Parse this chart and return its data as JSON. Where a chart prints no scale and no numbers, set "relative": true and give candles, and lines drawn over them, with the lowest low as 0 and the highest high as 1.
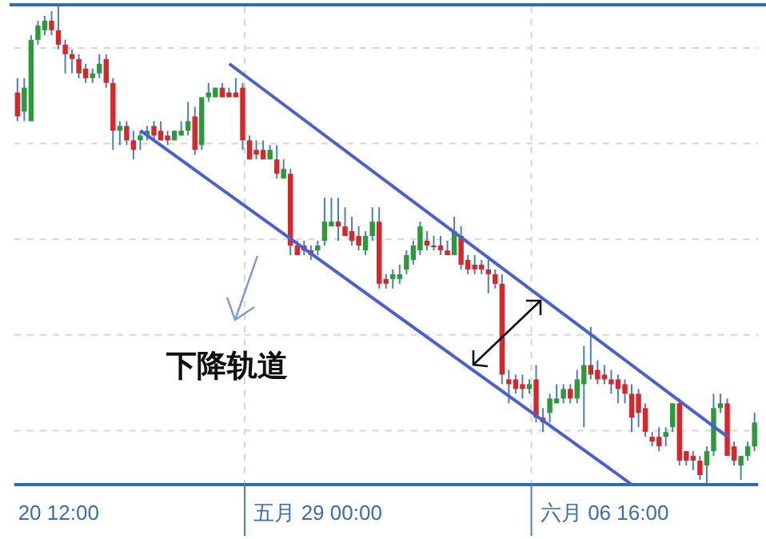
{
  "chart_data": {
    "type": "candlestick",
    "relative": true,
    "grid": true,
    "categories": [
      null,
      null,
      null,
      null,
      null,
      null,
      "20 12:00",
      null,
      null,
      null,
      null,
      null,
      null,
      null,
      null,
      null,
      null,
      null,
      null,
      null,
      null,
      null,
      null,
      null,
      null,
      null,
      null,
      null,
      null,
      null,
      null,
      null,
      null,
      null,
      null,
      null,
      null,
      null,
      null,
      null,
      null,
      null,
      null,
      null,
      "五月 29 00:00",
      null,
      null,
      null,
      null,
      null,
      null,
      null,
      null,
      null,
      null,
      null,
      null,
      null,
      null,
      null,
      null,
      null,
      null,
      null,
      null,
      null,
      null,
      null,
      null,
      null,
      null,
      null,
      null,
      null,
      null,
      null,
      null,
      null,
      null,
      null,
      null,
      null,
      null,
      null,
      null,
      null,
      "六月 06 16:00",
      null,
      null,
      null,
      null,
      null,
      null,
      null,
      null,
      null,
      null,
      null,
      null,
      null,
      null,
      null,
      null,
      null,
      null,
      null,
      null,
      null,
      null
    ],
    "ohlc": [
      [
        0.82,
        0.85,
        0.76,
        0.77
      ],
      [
        0.78,
        0.85,
        0.76,
        0.83
      ],
      [
        0.76,
        0.94,
        0.76,
        0.93
      ],
      [
        0.93,
        0.97,
        0.92,
        0.96
      ],
      [
        0.95,
        0.98,
        0.94,
        0.97
      ],
      [
        0.97,
        0.99,
        0.94,
        0.95
      ],
      [
        0.95,
        1,
        0.91,
        0.92
      ],
      [
        0.92,
        0.93,
        0.86,
        0.9
      ],
      [
        0.9,
        0.91,
        0.86,
        0.89
      ],
      [
        0.89,
        0.9,
        0.85,
        0.86
      ],
      [
        0.87,
        0.88,
        0.84,
        0.85
      ],
      [
        0.85,
        0.87,
        0.84,
        0.86
      ],
      [
        0.86,
        0.9,
        0.85,
        0.88
      ],
      [
        0.89,
        0.9,
        0.83,
        0.84
      ],
      [
        0.84,
        0.85,
        0.7,
        0.74
      ],
      [
        0.74,
        0.76,
        0.71,
        0.75
      ],
      [
        0.75,
        0.76,
        0.71,
        0.72
      ],
      [
        0.72,
        0.74,
        0.68,
        0.7
      ],
      [
        0.72,
        0.74,
        0.7,
        0.73
      ],
      [
        0.73,
        0.75,
        0.72,
        0.74
      ],
      [
        0.75,
        0.76,
        0.72,
        0.73
      ],
      [
        0.74,
        0.76,
        0.72,
        0.72
      ],
      [
        0.73,
        0.74,
        0.71,
        0.72
      ],
      [
        0.72,
        0.74,
        0.72,
        0.74
      ],
      [
        0.73,
        0.76,
        0.73,
        0.74
      ],
      [
        0.74,
        0.8,
        0.73,
        0.76
      ],
      [
        0.77,
        0.79,
        0.69,
        0.7
      ],
      [
        0.71,
        0.81,
        0.7,
        0.81
      ],
      [
        0.81,
        0.84,
        0.8,
        0.82
      ],
      [
        0.81,
        0.83,
        0.81,
        0.83
      ],
      [
        0.83,
        0.84,
        0.81,
        0.81
      ],
      [
        0.82,
        0.83,
        0.81,
        0.81
      ],
      [
        0.82,
        0.85,
        0.81,
        0.81
      ],
      [
        0.83,
        0.84,
        0.7,
        0.72
      ],
      [
        0.72,
        0.73,
        0.68,
        0.68
      ],
      [
        0.7,
        0.72,
        0.68,
        0.69
      ],
      [
        0.7,
        0.72,
        0.68,
        0.68
      ],
      [
        0.68,
        0.71,
        0.68,
        0.7
      ],
      [
        0.68,
        0.71,
        0.64,
        0.65
      ],
      [
        0.64,
        0.68,
        0.64,
        0.66
      ],
      [
        0.65,
        0.66,
        0.48,
        0.5
      ],
      [
        0.5,
        0.51,
        0.48,
        0.48
      ],
      [
        0.5,
        0.51,
        0.48,
        0.49
      ],
      [
        0.49,
        0.5,
        0.47,
        0.48
      ],
      [
        0.49,
        0.51,
        0.48,
        0.5
      ],
      [
        0.51,
        0.6,
        0.5,
        0.55
      ],
      [
        0.54,
        0.6,
        0.54,
        0.55
      ],
      [
        0.55,
        0.6,
        0.51,
        0.54
      ],
      [
        0.54,
        0.58,
        0.52,
        0.52
      ],
      [
        0.53,
        0.56,
        0.5,
        0.51
      ],
      [
        0.52,
        0.54,
        0.49,
        0.5
      ],
      [
        0.49,
        0.53,
        0.48,
        0.52
      ],
      [
        0.52,
        0.58,
        0.51,
        0.55
      ],
      [
        0.55,
        0.58,
        0.41,
        0.42
      ],
      [
        0.43,
        0.44,
        0.41,
        0.42
      ],
      [
        0.43,
        0.45,
        0.41,
        0.44
      ],
      [
        0.43,
        0.46,
        0.42,
        0.44
      ],
      [
        0.45,
        0.49,
        0.44,
        0.48
      ],
      [
        0.47,
        0.51,
        0.46,
        0.5
      ],
      [
        0.49,
        0.55,
        0.48,
        0.54
      ],
      [
        0.51,
        0.53,
        0.49,
        0.5
      ],
      [
        0.5,
        0.52,
        0.49,
        0.5
      ],
      [
        0.5,
        0.52,
        0.48,
        0.49
      ],
      [
        0.49,
        0.51,
        0.48,
        0.48
      ],
      [
        0.48,
        0.56,
        0.48,
        0.53
      ],
      [
        0.52,
        0.54,
        0.45,
        0.46
      ],
      [
        0.47,
        0.48,
        0.44,
        0.45
      ],
      [
        0.46,
        0.48,
        0.44,
        0.45
      ],
      [
        0.46,
        0.47,
        0.44,
        0.45
      ],
      [
        0.45,
        0.47,
        0.4,
        0.44
      ],
      [
        0.44,
        0.45,
        0.41,
        0.42
      ],
      [
        0.42,
        0.44,
        0.21,
        0.23
      ],
      [
        0.22,
        0.24,
        0.17,
        0.21
      ],
      [
        0.22,
        0.23,
        0.19,
        0.2
      ],
      [
        0.21,
        0.23,
        0.18,
        0.2
      ],
      [
        0.2,
        0.22,
        0.19,
        0.21
      ],
      [
        0.22,
        0.25,
        0.13,
        0.14
      ],
      [
        0.14,
        0.16,
        0.11,
        0.13
      ],
      [
        0.15,
        0.19,
        0.13,
        0.18
      ],
      [
        0.17,
        0.21,
        0.17,
        0.18
      ],
      [
        0.18,
        0.21,
        0.17,
        0.2
      ],
      [
        0.2,
        0.21,
        0.17,
        0.18
      ],
      [
        0.18,
        0.24,
        0.17,
        0.22
      ],
      [
        0.21,
        0.29,
        0.12,
        0.25
      ],
      [
        0.25,
        0.33,
        0.22,
        0.23
      ],
      [
        0.24,
        0.26,
        0.21,
        0.22
      ],
      [
        0.23,
        0.25,
        0.21,
        0.22
      ],
      [
        0.22,
        0.24,
        0.19,
        0.21
      ],
      [
        0.22,
        0.23,
        0.17,
        0.2
      ],
      [
        0.21,
        0.22,
        0.17,
        0.19
      ],
      [
        0.19,
        0.21,
        0.11,
        0.14
      ],
      [
        0.19,
        0.2,
        0.12,
        0.15
      ],
      [
        0.16,
        0.17,
        0.1,
        0.11
      ],
      [
        0.1,
        0.11,
        0.08,
        0.09
      ],
      [
        0.1,
        0.12,
        0.07,
        0.08
      ],
      [
        0.1,
        0.12,
        0.08,
        0.11
      ],
      [
        0.12,
        0.17,
        0.11,
        0.17
      ],
      [
        0.17,
        0.18,
        0.04,
        0.05
      ],
      [
        0.07,
        0.07,
        0.04,
        0.05
      ],
      [
        0.06,
        0.07,
        0.03,
        0.05
      ],
      [
        0.05,
        0.06,
        0.01,
        0.02
      ],
      [
        0.04,
        0.08,
        0,
        0.07
      ],
      [
        0.07,
        0.19,
        0.06,
        0.16
      ],
      [
        0.16,
        0.19,
        0.15,
        0.17
      ],
      [
        0.17,
        0.18,
        0.06,
        0.06
      ],
      [
        0.08,
        0.09,
        0.04,
        0.05
      ],
      [
        0.04,
        0.06,
        0.01,
        0.06
      ],
      [
        0.06,
        0.09,
        0.05,
        0.08
      ],
      [
        0.08,
        0.15,
        0.07,
        0.13
      ]
    ],
    "colors": [
      "#d9262b",
      "#2a9a3a",
      "#2a9a3a",
      "#2a9a3a",
      "#2a9a3a",
      "#d9262b",
      "#d9262b",
      "#d9262b",
      "#d9262b",
      "#d9262b",
      "#d9262b",
      "#2a9a3a",
      "#2a9a3a",
      "#d9262b",
      "#d9262b",
      "#2a9a3a",
      "#d9262b",
      "#d9262b",
      "#2a9a3a",
      "#2a9a3a",
      "#d9262b",
      "#d9262b",
      "#d9262b",
      "#2a9a3a",
      "#2a9a3a",
      "#2a9a3a",
      "#d9262b",
      "#2a9a3a",
      "#2a9a3a",
      "#2a9a3a",
      "#d9262b",
      "#d9262b",
      "#d9262b",
      "#d9262b",
      "#d9262b",
      "#d9262b",
      "#d9262b",
      "#2a9a3a",
      "#d9262b",
      "#2a9a3a",
      "#d9262b",
      "#d9262b",
      "#d9262b",
      "#d9262b",
      "#2a9a3a",
      "#2a9a3a",
      "#2a9a3a",
      "#d9262b",
      "#d9262b",
      "#d9262b",
      "#d9262b",
      "#2a9a3a",
      "#2a9a3a",
      "#d9262b",
      "#d9262b",
      "#2a9a3a",
      "#2a9a3a",
      "#2a9a3a",
      "#2a9a3a",
      "#2a9a3a",
      "#d9262b",
      "#d9262b",
      "#d9262b",
      "#d9262b",
      "#2a9a3a",
      "#d9262b",
      "#d9262b",
      "#d9262b",
      "#d9262b",
      "#d9262b",
      "#d9262b",
      "#d9262b",
      "#d9262b",
      "#d9262b",
      "#d9262b",
      "#2a9a3a",
      "#d9262b",
      "#d9262b",
      "#2a9a3a",
      "#2a9a3a",
      "#2a9a3a",
      "#d9262b",
      "#2a9a3a",
      "#2a9a3a",
      "#d9262b",
      "#d9262b",
      "#d9262b",
      "#d9262b",
      "#d9262b",
      "#d9262b",
      "#d9262b",
      "#d9262b",
      "#d9262b",
      "#d9262b",
      "#d9262b",
      "#2a9a3a",
      "#2a9a3a",
      "#d9262b",
      "#d9262b",
      "#d9262b",
      "#d9262b",
      "#2a9a3a",
      "#2a9a3a",
      "#2a9a3a",
      "#d9262b",
      "#d9262b",
      "#2a9a3a",
      "#2a9a3a",
      "#2a9a3a"
    ],
    "series": [
      {
        "type": "line",
        "color": "#4a5fd0",
        "values": [
          null,
          null,
          null,
          null,
          null,
          null,
          null,
          null,
          null,
          null,
          null,
          null,
          null,
          null,
          null,
          null,
          null,
          null,
          null,
          null,
          null,
          null,
          null,
          null,
          null,
          null,
          null,
          null,
          null,
          null,
          null,
          0.88,
          null,
          null,
          null,
          null,
          null,
          null,
          null,
          null,
          null,
          null,
          null,
          null,
          null,
          null,
          null,
          null,
          null,
          null,
          null,
          null,
          null,
          null,
          null,
          null,
          null,
          null,
          null,
          null,
          null,
          null,
          null,
          null,
          null,
          null,
          null,
          null,
          null,
          null,
          null,
          null,
          null,
          null,
          null,
          null,
          null,
          null,
          null,
          null,
          null,
          null,
          null,
          null,
          null,
          null,
          null,
          null,
          null,
          null,
          null,
          null,
          null,
          null,
          null,
          null,
          null,
          null,
          null,
          null,
          null,
          null,
          null,
          null,
          0.1,
          null,
          null,
          null,
          null
        ]
      },
      {
        "type": "line",
        "color": "#4a5fd0",
        "values": [
          null,
          null,
          null,
          null,
          null,
          null,
          null,
          null,
          null,
          null,
          null,
          null,
          null,
          null,
          null,
          null,
          null,
          null,
          0.74,
          null,
          null,
          null,
          null,
          null,
          null,
          null,
          null,
          null,
          null,
          null,
          null,
          null,
          null,
          null,
          null,
          null,
          null,
          null,
          null,
          null,
          null,
          null,
          null,
          null,
          null,
          null,
          null,
          null,
          null,
          null,
          null,
          null,
          null,
          null,
          null,
          null,
          null,
          null,
          null,
          null,
          null,
          null,
          null,
          null,
          null,
          null,
          null,
          null,
          null,
          null,
          null,
          null,
          null,
          null,
          null,
          null,
          null,
          null,
          null,
          null,
          null,
          null,
          null,
          null,
          null,
          null,
          null,
          null,
          null,
          null,
          0,
          null,
          null,
          null,
          null,
          null,
          null,
          null,
          null,
          null,
          null,
          null,
          null,
          null,
          null,
          null,
          null,
          null,
          null
        ]
      }
    ],
    "annotations": [
      "下降轨道"
    ]
  }
}
